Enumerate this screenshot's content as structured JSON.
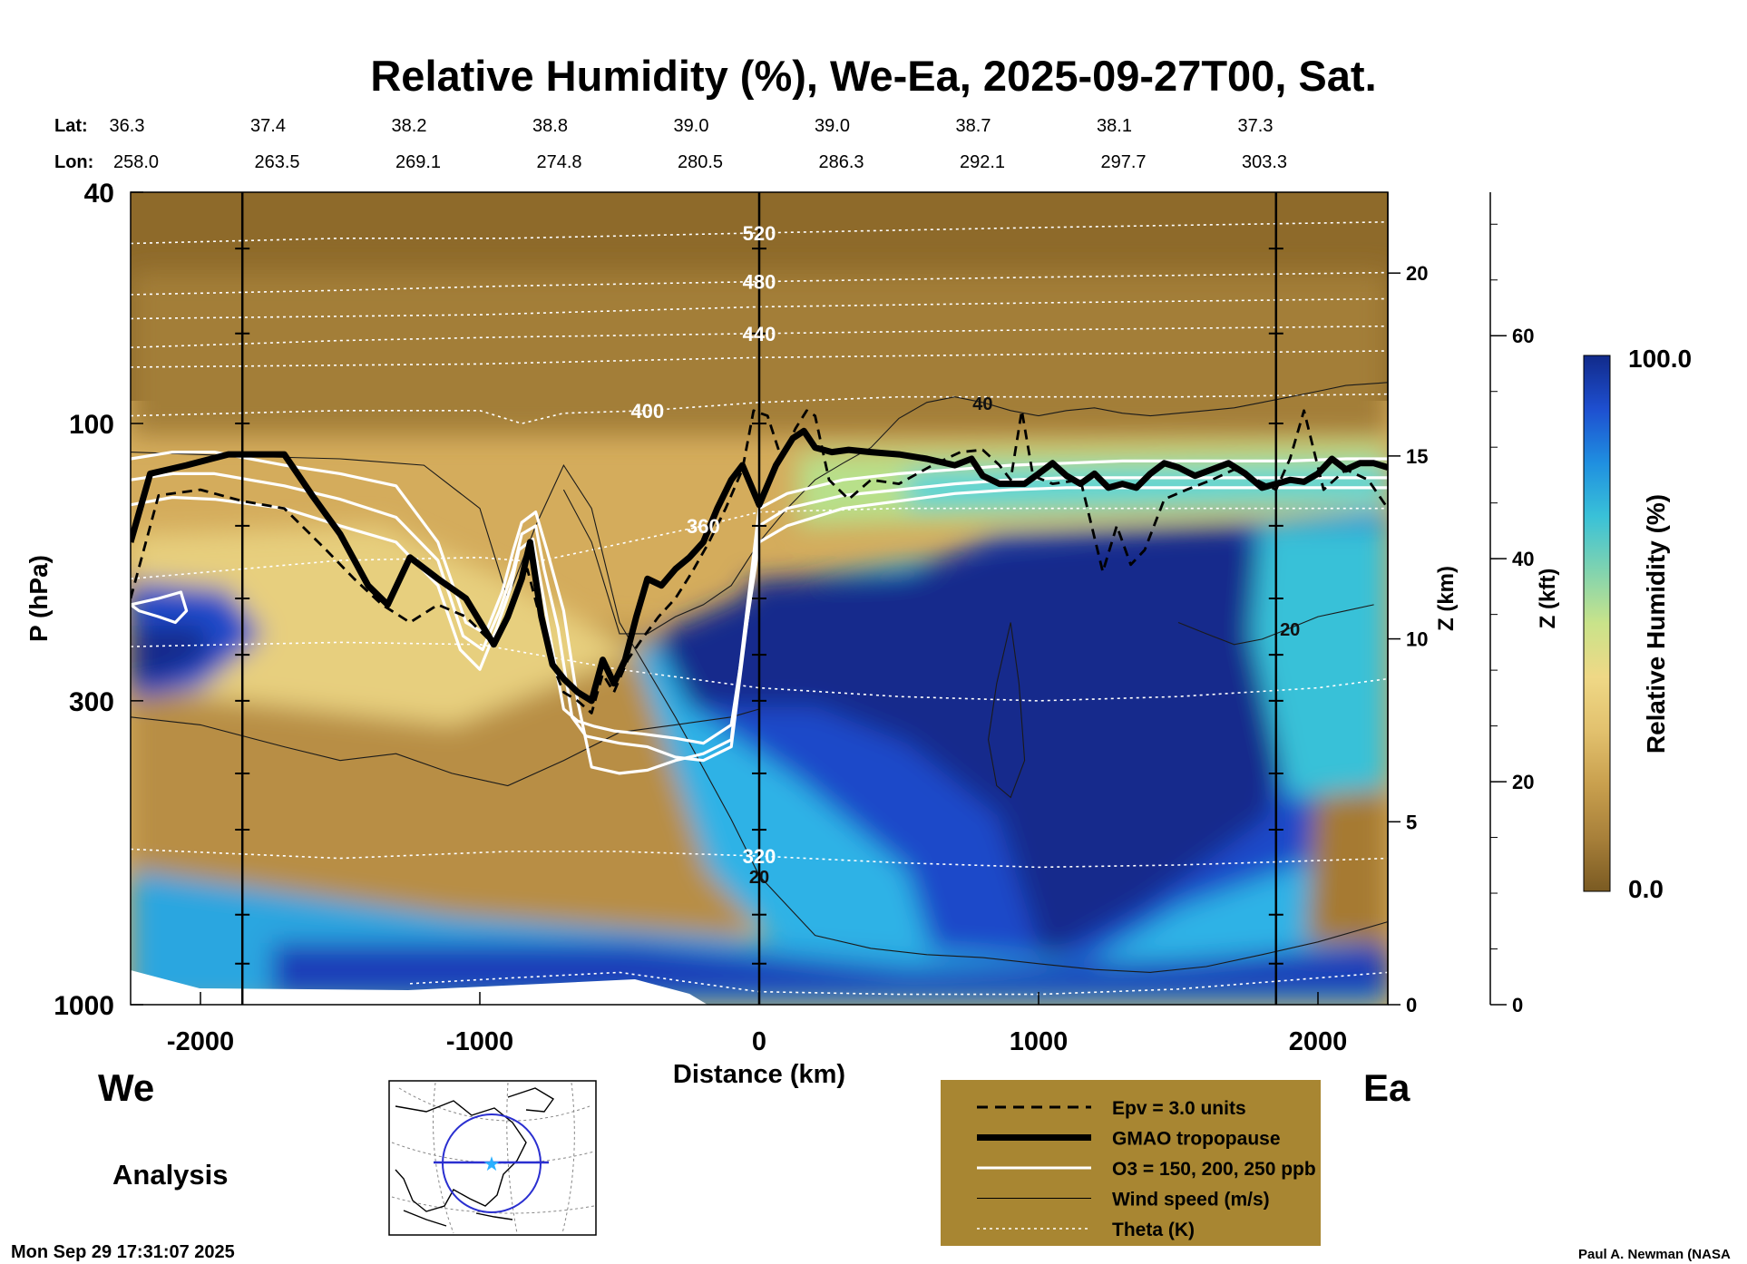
{
  "chart_data": {
    "type": "heatmap",
    "title": "Relative Humidity (%), We-Ea, 2025-09-27T00, Sat.",
    "xlabel": "Distance (km)",
    "ylabel": "P (hPa)",
    "z_km_label": "Z (km)",
    "z_kft_label": "Z (kft)",
    "colorbar_label": "Relative Humidity (%)",
    "colorbar_max_label": "100.0",
    "colorbar_min_label": "0.0",
    "colorbar_range": [
      0,
      100
    ],
    "colorscale": [
      "#7a5a22",
      "#a8803a",
      "#c9a04e",
      "#e2c16e",
      "#efd886",
      "#c9e38a",
      "#7fd3b0",
      "#39c1d8",
      "#1f8fe0",
      "#1e4fd0",
      "#112a8a"
    ],
    "xlim": [
      -2250,
      2250
    ],
    "ylim_hpa": [
      1000,
      40
    ],
    "y_scale": "log",
    "x_ticks": [
      "-2000",
      "-1000",
      "0",
      "1000",
      "2000"
    ],
    "y_ticks": [
      "40",
      "100",
      "300",
      "1000"
    ],
    "z_km_ticks": [
      "0",
      "5",
      "10",
      "15",
      "20"
    ],
    "z_kft_ticks": [
      "0",
      "20",
      "40",
      "60"
    ],
    "west_label": "We",
    "east_label": "Ea",
    "location_rows": [
      {
        "label": "Lat:",
        "values": [
          "36.3",
          "37.4",
          "38.2",
          "38.8",
          "39.0",
          "39.0",
          "38.7",
          "38.1",
          "37.3"
        ]
      },
      {
        "label": "Lon:",
        "values": [
          "258.0",
          "263.5",
          "269.1",
          "274.8",
          "280.5",
          "286.3",
          "292.1",
          "297.7",
          "303.3"
        ]
      }
    ],
    "vertical_markers_km": [
      -1850,
      0,
      1850
    ],
    "tropopause": {
      "distance_km": [
        -2250,
        -2180,
        -2050,
        -1900,
        -1700,
        -1600,
        -1500,
        -1400,
        -1330,
        -1250,
        -1150,
        -1050,
        -950,
        -900,
        -850,
        -820,
        -780,
        -740,
        -700,
        -650,
        -600,
        -560,
        -520,
        -480,
        -440,
        -400,
        -350,
        -300,
        -250,
        -200,
        -150,
        -100,
        -60,
        0,
        60,
        120,
        160,
        200,
        260,
        320,
        400,
        500,
        600,
        700,
        760,
        800,
        860,
        900,
        950,
        1000,
        1050,
        1100,
        1150,
        1200,
        1250,
        1300,
        1350,
        1400,
        1450,
        1500,
        1560,
        1620,
        1680,
        1740,
        1800,
        1850,
        1900,
        1950,
        2000,
        2050,
        2100,
        2150,
        2200,
        2250
      ],
      "pressure_hpa": [
        160,
        122,
        118,
        113,
        113,
        133,
        155,
        190,
        205,
        170,
        185,
        200,
        240,
        215,
        185,
        160,
        215,
        260,
        275,
        290,
        300,
        255,
        280,
        255,
        215,
        185,
        190,
        178,
        170,
        160,
        140,
        125,
        118,
        138,
        118,
        106,
        103,
        110,
        112,
        111,
        112,
        113,
        115,
        118,
        115,
        123,
        127,
        127,
        127,
        122,
        117,
        123,
        127,
        122,
        129,
        127,
        129,
        122,
        117,
        119,
        123,
        120,
        117,
        122,
        129,
        127,
        125,
        126,
        122,
        115,
        120,
        117,
        117,
        119
      ]
    },
    "o3_contours": [
      {
        "label": "O3 = 150 ppb",
        "distance_km": [
          -2250,
          -2100,
          -1950,
          -1700,
          -1500,
          -1300,
          -1150,
          -1050,
          -980,
          -920,
          -880,
          -850,
          -800,
          -760,
          -700,
          -650,
          -600,
          -500,
          -400,
          -300,
          -200,
          -100,
          0,
          100,
          300,
          500,
          700,
          900,
          1100,
          1300,
          1500,
          1700,
          1900,
          2100,
          2250
        ],
        "pressure_hpa": [
          115,
          112,
          112,
          118,
          122,
          128,
          160,
          220,
          230,
          195,
          165,
          148,
          142,
          165,
          210,
          300,
          390,
          400,
          395,
          380,
          370,
          350,
          140,
          132,
          125,
          122,
          120,
          118,
          117,
          116,
          116,
          116,
          116,
          115,
          115
        ]
      },
      {
        "label": "O3 = 200 ppb",
        "distance_km": [
          -2250,
          -2100,
          -1950,
          -1700,
          -1500,
          -1300,
          -1150,
          -1060,
          -990,
          -930,
          -880,
          -850,
          -800,
          -770,
          -720,
          -670,
          -620,
          -560,
          -500,
          -400,
          -300,
          -200,
          -100,
          0,
          100,
          300,
          500,
          700,
          900,
          1100,
          1300,
          1500,
          1700,
          1900,
          2100,
          2250
        ],
        "pressure_hpa": [
          125,
          122,
          122,
          128,
          135,
          145,
          172,
          232,
          245,
          210,
          178,
          155,
          150,
          178,
          225,
          320,
          345,
          350,
          355,
          360,
          375,
          380,
          360,
          150,
          140,
          133,
          130,
          127,
          125,
          124,
          124,
          124,
          124,
          124,
          124,
          124
        ]
      },
      {
        "label": "O3 = 250 ppb",
        "distance_km": [
          -2250,
          -2100,
          -1950,
          -1700,
          -1500,
          -1300,
          -1150,
          -1070,
          -1000,
          -940,
          -890,
          -860,
          -810,
          -780,
          -740,
          -700,
          -650,
          -590,
          -520,
          -420,
          -300,
          -200,
          -100,
          0,
          100,
          300,
          500,
          700,
          900,
          1100,
          1300,
          1500,
          1700,
          1900,
          2100,
          2250
        ],
        "pressure_hpa": [
          138,
          134,
          135,
          140,
          150,
          160,
          190,
          245,
          265,
          225,
          192,
          165,
          158,
          190,
          245,
          310,
          325,
          332,
          338,
          342,
          348,
          355,
          330,
          160,
          150,
          140,
          136,
          132,
          130,
          129,
          129,
          129,
          129,
          129,
          129,
          129
        ]
      },
      {
        "label": "O3 = 150 ppb",
        "distance_km": [
          -2250,
          -2220,
          -2150,
          -2090,
          -2050,
          -2070,
          -2150,
          -2250
        ],
        "pressure_hpa": [
          205,
          210,
          215,
          220,
          210,
          195,
          200,
          205
        ]
      }
    ],
    "epv_contour": {
      "distance_km": [
        -2250,
        -2150,
        -2000,
        -1850,
        -1700,
        -1550,
        -1450,
        -1350,
        -1250,
        -1150,
        -1050,
        -950,
        -880,
        -830,
        -780,
        -740,
        -700,
        -650,
        -600,
        -560,
        -520,
        -470,
        -420,
        -360,
        -300,
        -240,
        -180,
        -120,
        -60,
        -20,
        30,
        80,
        130,
        170,
        200,
        250,
        320,
        400,
        500,
        620,
        720,
        800,
        860,
        900,
        940,
        980,
        1050,
        1150,
        1230,
        1280,
        1330,
        1380,
        1450,
        1530,
        1620,
        1700,
        1780,
        1850,
        1900,
        1950,
        2020,
        2100,
        2180,
        2250
      ],
      "pressure_hpa": [
        200,
        133,
        130,
        136,
        140,
        165,
        185,
        205,
        220,
        205,
        215,
        240,
        200,
        178,
        220,
        260,
        290,
        300,
        315,
        270,
        290,
        255,
        235,
        215,
        200,
        180,
        160,
        140,
        120,
        95,
        97,
        115,
        102,
        95,
        97,
        125,
        135,
        125,
        127,
        118,
        112,
        111,
        118,
        125,
        95,
        123,
        127,
        125,
        180,
        150,
        175,
        165,
        135,
        130,
        125,
        120,
        125,
        130,
        115,
        95,
        130,
        120,
        125,
        140
      ]
    },
    "theta_contours": [
      {
        "label": "320",
        "level_k": 320,
        "distance_km": [
          -2250,
          -1500,
          -900,
          -500,
          0,
          500,
          1000,
          1500,
          2250
        ],
        "pressure_hpa": [
          540,
          560,
          545,
          545,
          555,
          570,
          580,
          575,
          560
        ]
      },
      {
        "label": "",
        "level_k": 340,
        "distance_km": [
          -2250,
          -1500,
          -1000,
          -500,
          0,
          500,
          1000,
          1500,
          2000,
          2250
        ],
        "pressure_hpa": [
          242,
          238,
          240,
          265,
          285,
          295,
          300,
          295,
          285,
          275
        ]
      },
      {
        "label": "360",
        "level_k": 360,
        "distance_km": [
          -2250,
          -1500,
          -1000,
          -800,
          -600,
          -200,
          0,
          500,
          1000,
          1500,
          2250
        ],
        "pressure_hpa": [
          185,
          172,
          170,
          173,
          165,
          150,
          142,
          140,
          140,
          140,
          140
        ]
      },
      {
        "label": "400",
        "level_k": 400,
        "distance_km": [
          -2250,
          -1500,
          -1000,
          -850,
          -700,
          -400,
          0,
          500,
          1000,
          1500,
          2250
        ],
        "pressure_hpa": [
          97,
          95,
          95,
          100,
          96,
          95,
          92,
          90,
          90,
          90,
          89
        ]
      },
      {
        "label": "440",
        "level_k": 440,
        "distance_km": [
          -2250,
          -1500,
          -900,
          0,
          1000,
          2250
        ],
        "pressure_hpa": [
          74,
          72,
          71,
          70,
          69,
          68
        ]
      },
      {
        "label": "480",
        "level_k": 480,
        "distance_km": [
          -2250,
          -1500,
          -900,
          0,
          1000,
          2250
        ],
        "pressure_hpa": [
          60,
          59,
          58,
          57,
          56,
          55
        ]
      },
      {
        "label": "520",
        "level_k": 520,
        "distance_km": [
          -2250,
          -1500,
          -900,
          0,
          1000,
          2250
        ],
        "pressure_hpa": [
          49,
          48,
          48,
          47,
          46,
          45
        ]
      },
      {
        "label": "",
        "level_k": 300,
        "distance_km": [
          -1250,
          -900,
          -500,
          0,
          500,
          1000,
          1500,
          2250
        ],
        "pressure_hpa": [
          920,
          900,
          880,
          950,
          960,
          960,
          940,
          880
        ]
      },
      {
        "label": "",
        "level_k": 430,
        "distance_km": [
          -2250,
          -1000,
          0,
          1000,
          2250
        ],
        "pressure_hpa": [
          80,
          79,
          77,
          76,
          75
        ]
      },
      {
        "label": "",
        "level_k": 460,
        "distance_km": [
          -2250,
          -1000,
          0,
          1000,
          2250
        ],
        "pressure_hpa": [
          66,
          65,
          63,
          62,
          61
        ]
      }
    ],
    "wind_contours": [
      {
        "label": "20",
        "level_ms": 20,
        "distance_km": [
          -2250,
          -1800,
          -1500,
          -1200,
          -1000,
          -900,
          -800,
          -700,
          -600,
          -500,
          -300,
          -100,
          0,
          200,
          400,
          600,
          800,
          1000,
          1200,
          1400,
          1600,
          1800,
          2000,
          2250
        ],
        "pressure_hpa": [
          112,
          114,
          115,
          118,
          140,
          200,
          150,
          118,
          140,
          220,
          320,
          480,
          600,
          760,
          800,
          820,
          830,
          850,
          870,
          880,
          860,
          820,
          780,
          720
        ]
      },
      {
        "label": "40",
        "level_ms": 40,
        "distance_km": [
          -700,
          -600,
          -500,
          -400,
          -300,
          -200,
          -100,
          0,
          100,
          200,
          300,
          400,
          500,
          600,
          700,
          800,
          900,
          1000,
          1100,
          1200,
          1300,
          1400,
          1500,
          1600,
          1700,
          1800,
          1900,
          2000,
          2100,
          2250
        ],
        "pressure_hpa": [
          130,
          160,
          230,
          230,
          215,
          205,
          190,
          160,
          140,
          125,
          117,
          110,
          98,
          92,
          90,
          92,
          95,
          97,
          95,
          94,
          96,
          97,
          96,
          95,
          94,
          92,
          90,
          88,
          86,
          85
        ]
      },
      {
        "label": "",
        "level_ms": 10,
        "distance_km": [
          -2250,
          -2000,
          -1700,
          -1500,
          -1300,
          -1100,
          -900,
          -700,
          -500,
          -300,
          -100,
          0
        ],
        "pressure_hpa": [
          320,
          330,
          360,
          380,
          370,
          400,
          420,
          380,
          340,
          330,
          320,
          310
        ]
      },
      {
        "label": "20",
        "level_ms": 20,
        "distance_km": [
          1500,
          1600,
          1700,
          1800,
          1900,
          2000,
          2100,
          2200
        ],
        "pressure_hpa": [
          220,
          230,
          240,
          235,
          225,
          215,
          210,
          205
        ]
      },
      {
        "label": "",
        "level_ms": 30,
        "distance_km": [
          900,
          850,
          820,
          850,
          900,
          950,
          930,
          900
        ],
        "pressure_hpa": [
          220,
          280,
          350,
          420,
          440,
          380,
          280,
          220
        ]
      }
    ],
    "legend": [
      {
        "label": "Epv = 3.0 units",
        "style": "dashed-black"
      },
      {
        "label": "GMAO tropopause",
        "style": "thick-black"
      },
      {
        "label": "O3 = 150, 200, 250 ppb",
        "style": "white"
      },
      {
        "label": "Wind speed (m/s)",
        "style": "thin-black"
      },
      {
        "label": "Theta (K)",
        "style": "dotted-white"
      }
    ],
    "legend_position": "bottom-right",
    "legend_background": "#a88632",
    "inset_map": "north-america-orthographic",
    "inset_track_color": "#2a2fd0",
    "inset_midpoint_color": "#2ab0ff"
  },
  "analysis_label": "Analysis",
  "timestamp": "Mon Sep 29 17:31:07 2025",
  "credit": "Paul A. Newman (NASA"
}
